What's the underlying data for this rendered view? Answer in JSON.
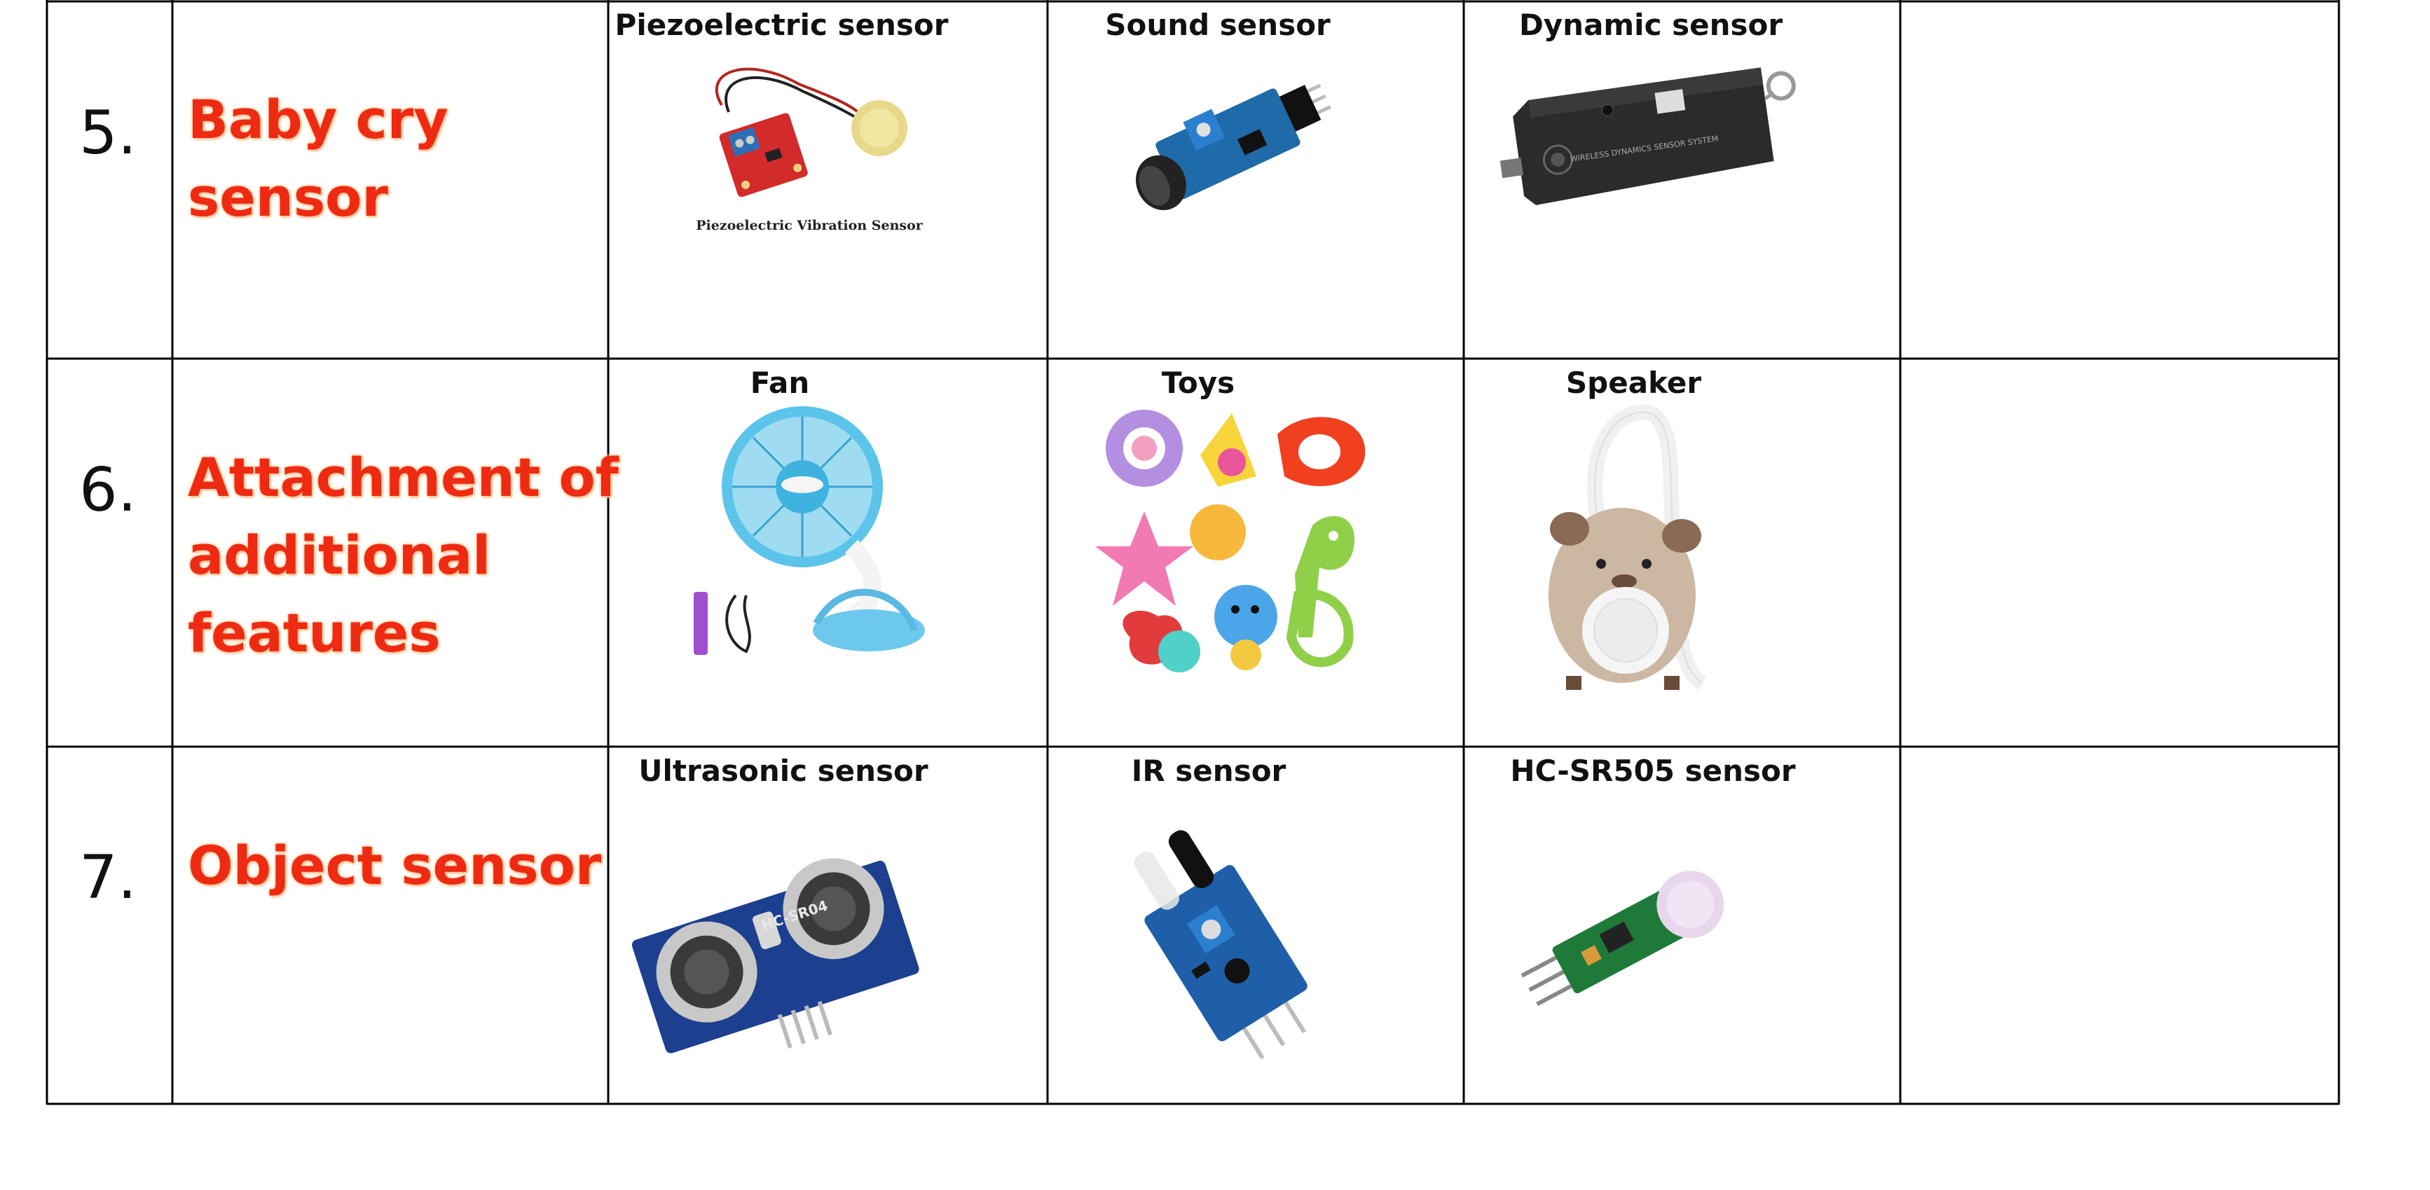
{
  "rows": [
    {
      "number": "5.",
      "feature": [
        "Baby cry",
        "sensor"
      ],
      "items": [
        {
          "caption": "Piezoelectric sensor",
          "icon": "piezo-sensor-icon",
          "image_label": "Piezoelectric Vibration Sensor"
        },
        {
          "caption": "Sound sensor",
          "icon": "sound-sensor-icon"
        },
        {
          "caption": "Dynamic sensor",
          "icon": "dynamic-sensor-icon",
          "image_label": "WIRELESS DYNAMICS SENSOR SYSTEM"
        }
      ]
    },
    {
      "number": "6.",
      "feature": [
        "Attachment of",
        "additional",
        "features"
      ],
      "items": [
        {
          "caption": "Fan",
          "icon": "fan-icon"
        },
        {
          "caption": "Toys",
          "icon": "toys-icon"
        },
        {
          "caption": "Speaker",
          "icon": "speaker-icon"
        }
      ]
    },
    {
      "number": "7.",
      "feature": [
        "Object sensor"
      ],
      "items": [
        {
          "caption": "Ultrasonic sensor",
          "icon": "ultrasonic-sensor-icon",
          "image_label": "HC-SR04"
        },
        {
          "caption": "IR sensor",
          "icon": "ir-sensor-icon"
        },
        {
          "caption": "HC-SR505 sensor",
          "icon": "pir-sensor-icon"
        }
      ]
    }
  ],
  "colors": {
    "feature_text": "#ee2a12",
    "border": "#000000"
  }
}
